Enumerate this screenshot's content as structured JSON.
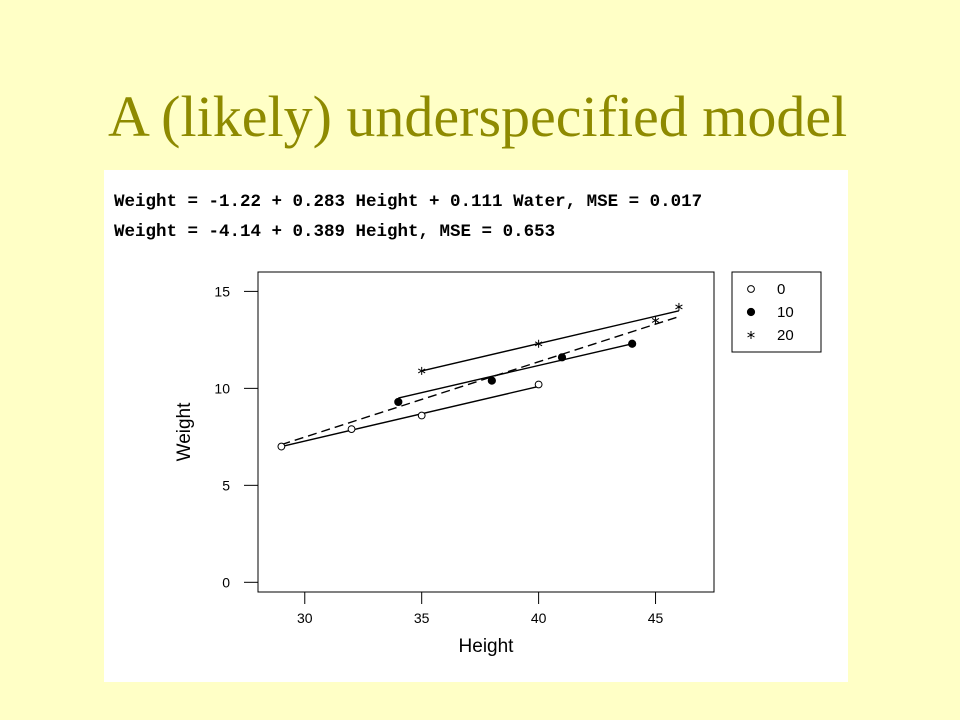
{
  "slide": {
    "title": "A (likely) underspecified model",
    "equations": [
      "Weight = -1.22 + 0.283 Height + 0.111 Water, MSE = 0.017",
      "Weight = -4.14 + 0.389 Height, MSE = 0.653"
    ]
  },
  "colors": {
    "background": "#FFFFC6",
    "title": "#8E8A00",
    "panel": "#FFFFFF",
    "ink": "#000000"
  },
  "chart_data": {
    "type": "scatter",
    "xlabel": "Height",
    "ylabel": "Weight",
    "xlim": [
      28,
      47.5
    ],
    "ylim": [
      -0.5,
      16
    ],
    "xticks": [
      30,
      35,
      40,
      45
    ],
    "yticks": [
      0,
      5,
      10,
      15
    ],
    "legend_position": "top-right",
    "series": [
      {
        "name": "0",
        "marker": "open-circle",
        "points": [
          {
            "x": 29,
            "y": 7.0
          },
          {
            "x": 32,
            "y": 7.9
          },
          {
            "x": 35,
            "y": 8.6
          },
          {
            "x": 40,
            "y": 10.2
          }
        ],
        "fit_line": {
          "style": "solid",
          "from": {
            "x": 29,
            "y": 7.0
          },
          "to": {
            "x": 40,
            "y": 10.1
          }
        }
      },
      {
        "name": "10",
        "marker": "filled-circle",
        "points": [
          {
            "x": 34,
            "y": 9.3
          },
          {
            "x": 38,
            "y": 10.4
          },
          {
            "x": 41,
            "y": 11.6
          },
          {
            "x": 44,
            "y": 12.3
          }
        ],
        "fit_line": {
          "style": "solid",
          "from": {
            "x": 34,
            "y": 9.5
          },
          "to": {
            "x": 44,
            "y": 12.3
          }
        }
      },
      {
        "name": "20",
        "marker": "star",
        "points": [
          {
            "x": 35,
            "y": 10.9
          },
          {
            "x": 40,
            "y": 12.3
          },
          {
            "x": 45,
            "y": 13.5
          },
          {
            "x": 46,
            "y": 14.2
          }
        ],
        "fit_line": {
          "style": "solid",
          "from": {
            "x": 35,
            "y": 10.9
          },
          "to": {
            "x": 46,
            "y": 14.0
          }
        }
      }
    ],
    "overall_fit": {
      "style": "dashed",
      "from": {
        "x": 29,
        "y": 7.1
      },
      "to": {
        "x": 46,
        "y": 13.7
      }
    }
  }
}
